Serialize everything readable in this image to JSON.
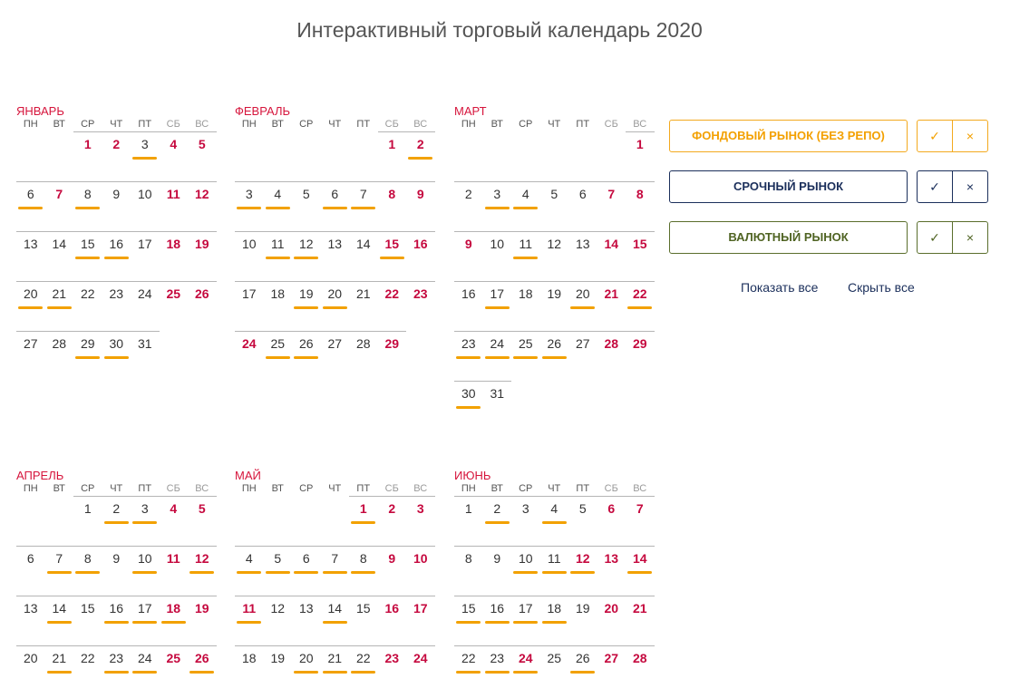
{
  "title": "Интерактивный торговый календарь 2020",
  "weekdays": [
    "ПН",
    "ВТ",
    "СР",
    "ЧТ",
    "ПТ",
    "СБ",
    "ВС"
  ],
  "colors": {
    "holiday": "#c5083e",
    "stock": "#f3a000",
    "futures": "#1b2f5b",
    "currency": "#4f6322",
    "marker": "#f2a100"
  },
  "months": [
    {
      "name": "Январь",
      "start": 2,
      "days": 31,
      "holidays": [
        1,
        2,
        4,
        5,
        7,
        11,
        12,
        18,
        19,
        25,
        26
      ],
      "marked": [
        3,
        6,
        8,
        15,
        16,
        20,
        21,
        29,
        30
      ]
    },
    {
      "name": "Февраль",
      "start": 5,
      "days": 29,
      "holidays": [
        1,
        2,
        8,
        9,
        15,
        16,
        22,
        23,
        24,
        29
      ],
      "marked": [
        2,
        3,
        4,
        6,
        7,
        11,
        12,
        15,
        19,
        20,
        25,
        26
      ]
    },
    {
      "name": "Март",
      "start": 6,
      "days": 31,
      "holidays": [
        1,
        7,
        8,
        9,
        14,
        15,
        21,
        22,
        28,
        29
      ],
      "marked": [
        3,
        4,
        11,
        17,
        20,
        22,
        23,
        24,
        25,
        26,
        30
      ]
    },
    {
      "name": "Апрель",
      "start": 2,
      "days": 26,
      "holidays": [
        4,
        5,
        11,
        12,
        18,
        19,
        25,
        26
      ],
      "marked": [
        2,
        3,
        7,
        8,
        10,
        12,
        14,
        16,
        17,
        18,
        21,
        23,
        24,
        26
      ]
    },
    {
      "name": "Май",
      "start": 4,
      "days": 24,
      "holidays": [
        1,
        2,
        3,
        9,
        10,
        11,
        16,
        17,
        23,
        24
      ],
      "marked": [
        1,
        4,
        5,
        6,
        7,
        8,
        11,
        14,
        20,
        21,
        22
      ]
    },
    {
      "name": "Июнь",
      "start": 0,
      "days": 28,
      "holidays": [
        6,
        7,
        12,
        13,
        14,
        20,
        21,
        24,
        27,
        28
      ],
      "marked": [
        2,
        4,
        10,
        11,
        12,
        14,
        15,
        16,
        17,
        18,
        22,
        23,
        24,
        26
      ]
    }
  ],
  "markets": [
    {
      "label": "Фондовый рынок (без РЕПО)",
      "check": "✓",
      "cross": "×"
    },
    {
      "label": "Срочный рынок",
      "check": "✓",
      "cross": "×"
    },
    {
      "label": "Валютный рынок",
      "check": "✓",
      "cross": "×"
    }
  ],
  "links": {
    "show_all": "Показать все",
    "hide_all": "Скрыть все"
  }
}
